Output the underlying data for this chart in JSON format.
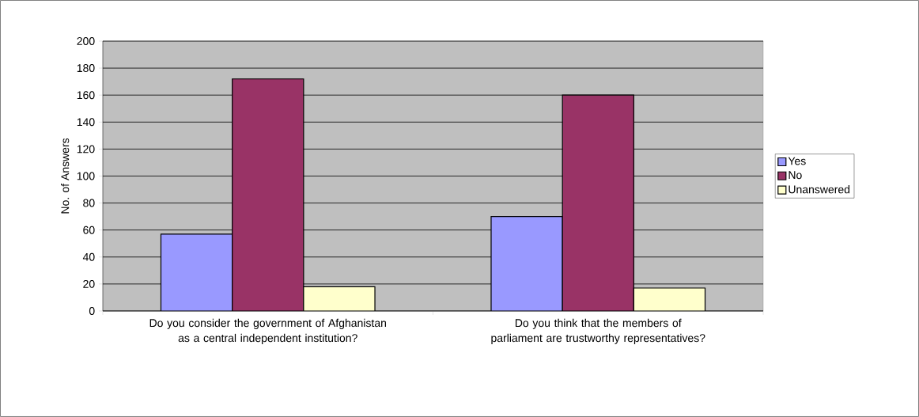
{
  "chart_data": {
    "type": "bar",
    "ylabel": "No. of Answers",
    "categories": [
      "Do you consider the government of Afghanistan as a central independent institution?",
      "Do you think that the members of parliament are trustworthy representatives?"
    ],
    "series": [
      {
        "name": "Yes",
        "color": "#9999ff",
        "values": [
          57,
          70
        ]
      },
      {
        "name": "No",
        "color": "#993366",
        "values": [
          172,
          160
        ]
      },
      {
        "name": "Unanswered",
        "color": "#ffffcc",
        "values": [
          18,
          17
        ]
      }
    ],
    "ylim": [
      0,
      200
    ],
    "yticks": [
      0,
      20,
      40,
      60,
      80,
      100,
      120,
      140,
      160,
      180,
      200
    ],
    "grid": "y",
    "legend": "right"
  }
}
